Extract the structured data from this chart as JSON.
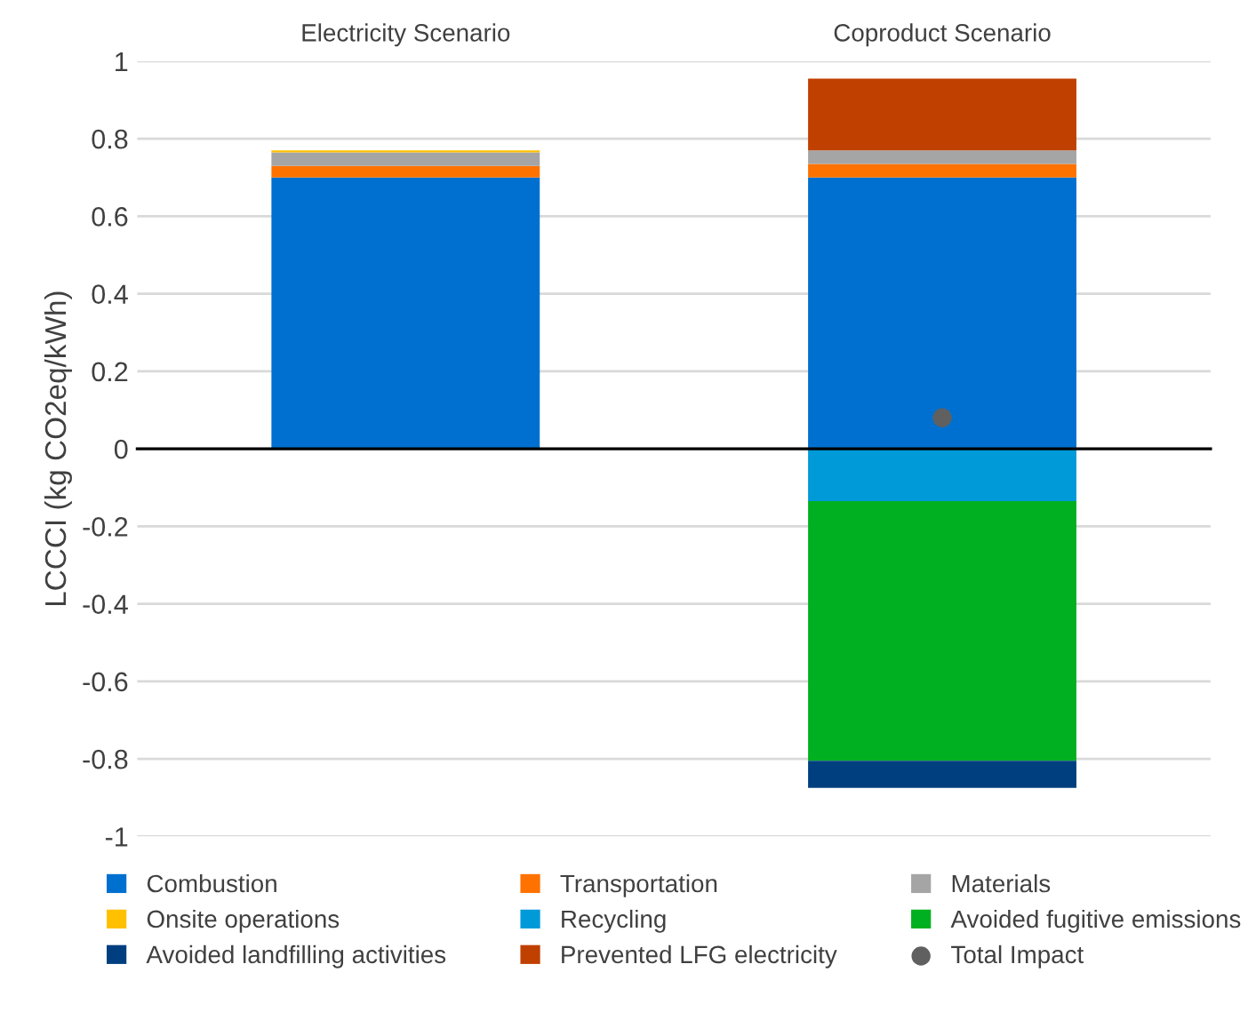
{
  "chart_data": {
    "type": "bar",
    "stacked": true,
    "ylabel": "LCCCI (kg CO2eq/kWh)",
    "categories": [
      "Electricity Scenario",
      "Coproduct Scenario"
    ],
    "series": [
      {
        "name": "Combustion",
        "color": "#0070d0",
        "values": [
          0.7,
          0.7
        ]
      },
      {
        "name": "Transportation",
        "color": "#ff7200",
        "values": [
          0.03,
          0.035
        ]
      },
      {
        "name": "Materials",
        "color": "#a5a5a5",
        "values": [
          0.035,
          0.035
        ]
      },
      {
        "name": "Onsite operations",
        "color": "#ffc000",
        "values": [
          0.005,
          null
        ]
      },
      {
        "name": "Recycling",
        "color": "#009ad9",
        "values": [
          null,
          -0.135
        ]
      },
      {
        "name": "Avoided fugitive emissions",
        "color": "#00b020",
        "values": [
          null,
          -0.67
        ]
      },
      {
        "name": "Avoided landfilling activities",
        "color": "#003f7f",
        "values": [
          null,
          -0.07
        ]
      },
      {
        "name": "Prevented LFG electricity",
        "color": "#c04000",
        "values": [
          null,
          0.185
        ]
      },
      {
        "name": "Total Impact",
        "type": "scatter",
        "marker": "circle",
        "color": "#606060",
        "x": [
          "Electricity Scenario",
          "Coproduct Scenario"
        ],
        "values": [
          null,
          0.08
        ]
      }
    ],
    "ylim": [
      -1,
      1
    ],
    "yticks": [
      -1,
      -0.8,
      -0.6,
      -0.4,
      -0.2,
      0,
      0.2,
      0.4,
      0.6,
      0.8,
      1
    ],
    "grid": "y",
    "legend": "bottom"
  }
}
